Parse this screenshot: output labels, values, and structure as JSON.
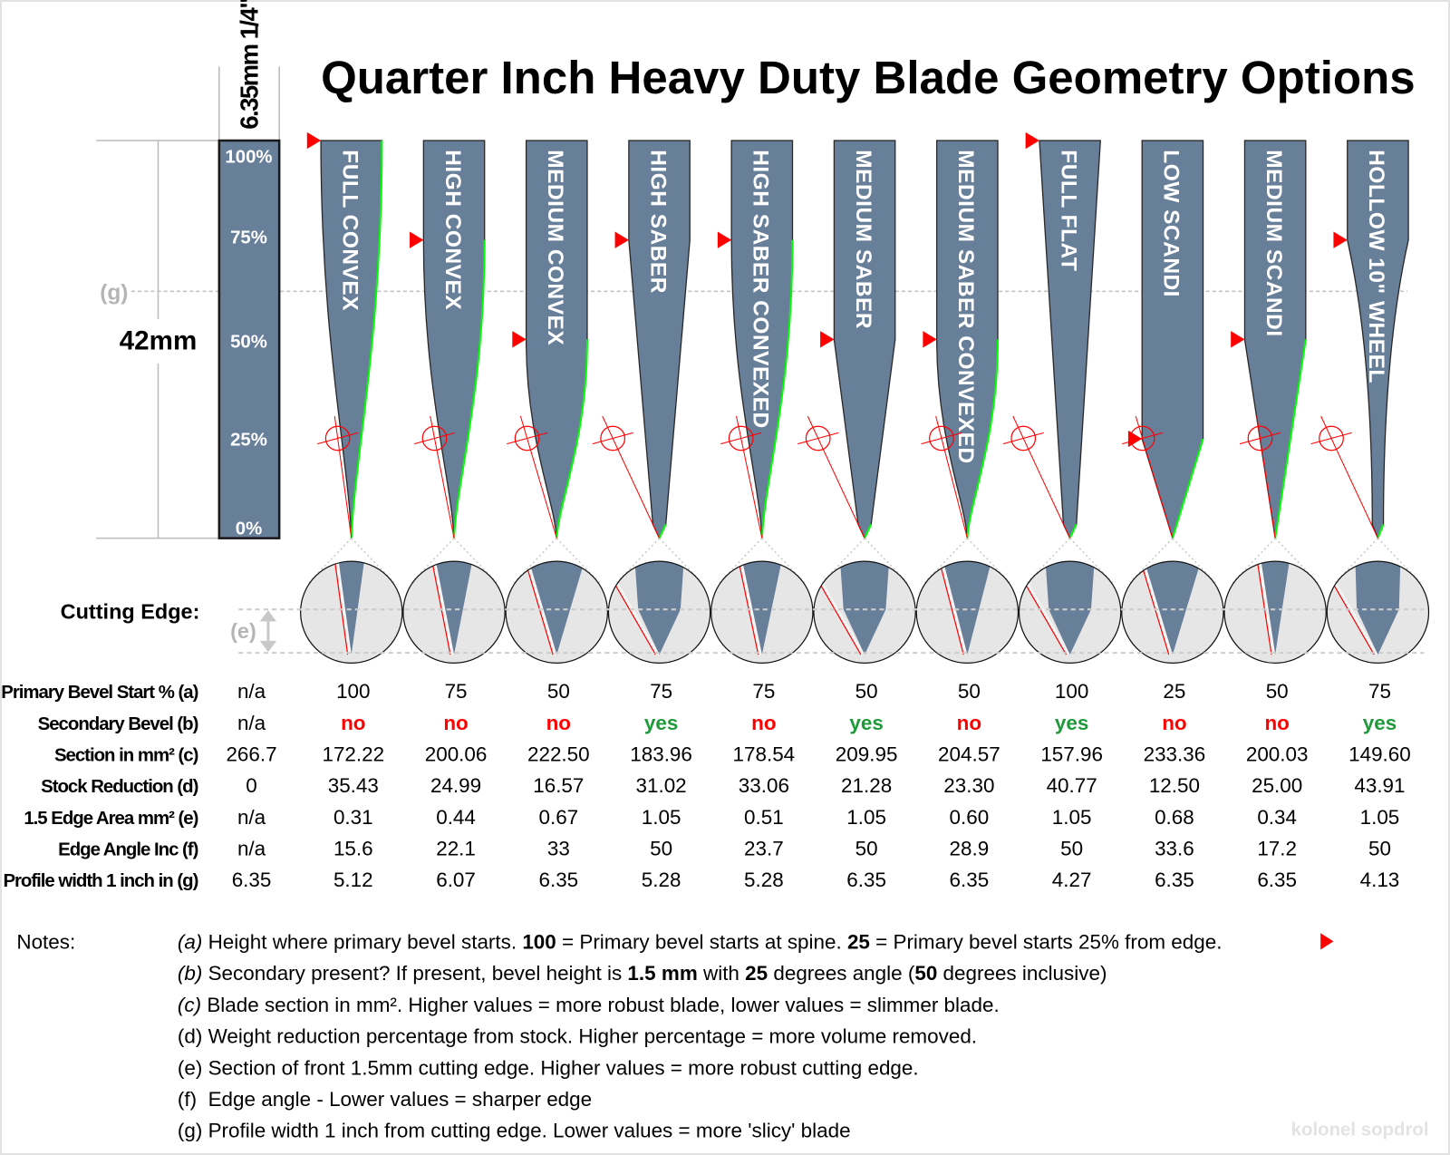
{
  "title": "Quarter Inch Heavy Duty Blade Geometry Options",
  "reference": {
    "stock_label": "6.35mm 1/4\"",
    "height_label": "42mm",
    "g_marker": "(g)",
    "e_marker": "(e)",
    "percent_ticks": [
      "100%",
      "75%",
      "50%",
      "25%",
      "0%"
    ]
  },
  "cutting_edge_label": "Cutting Edge:",
  "colors": {
    "blade": "#687f9a",
    "edge_green": "#00ff00",
    "marker_red": "#ff0000",
    "yes": "#1e9a3a",
    "no": "#ff0000",
    "magnifier_bg": "#e6e6e6"
  },
  "blades": [
    {
      "name": "FULL CONVEX",
      "grind": "convex"
    },
    {
      "name": "HIGH CONVEX",
      "grind": "convex"
    },
    {
      "name": "MEDIUM CONVEX",
      "grind": "convex"
    },
    {
      "name": "HIGH SABER",
      "grind": "flat"
    },
    {
      "name": "HIGH SABER CONVEXED",
      "grind": "convex"
    },
    {
      "name": "MEDIUM SABER",
      "grind": "flat"
    },
    {
      "name": "MEDIUM SABER CONVEXED",
      "grind": "convex"
    },
    {
      "name": "FULL FLAT",
      "grind": "flat"
    },
    {
      "name": "LOW SCANDI",
      "grind": "flat"
    },
    {
      "name": "MEDIUM SCANDI",
      "grind": "flat"
    },
    {
      "name": "HOLLOW 10\" WHEEL",
      "grind": "hollow"
    }
  ],
  "table": {
    "rows": [
      {
        "label": "Primary Bevel Start % (a)",
        "values": [
          "n/a",
          "100",
          "75",
          "50",
          "75",
          "75",
          "50",
          "50",
          "100",
          "25",
          "50",
          "75"
        ]
      },
      {
        "label": "Secondary Bevel (b)",
        "values": [
          "n/a",
          "no",
          "no",
          "no",
          "yes",
          "no",
          "yes",
          "no",
          "yes",
          "no",
          "no",
          "yes"
        ]
      },
      {
        "label": "Section in mm² (c)",
        "values": [
          "266.7",
          "172.22",
          "200.06",
          "222.50",
          "183.96",
          "178.54",
          "209.95",
          "204.57",
          "157.96",
          "233.36",
          "200.03",
          "149.60"
        ]
      },
      {
        "label": "Stock Reduction (d)",
        "values": [
          "0",
          "35.43",
          "24.99",
          "16.57",
          "31.02",
          "33.06",
          "21.28",
          "23.30",
          "40.77",
          "12.50",
          "25.00",
          "43.91"
        ]
      },
      {
        "label": "1.5 Edge Area mm² (e)",
        "values": [
          "n/a",
          "0.31",
          "0.44",
          "0.67",
          "1.05",
          "0.51",
          "1.05",
          "0.60",
          "1.05",
          "0.68",
          "0.34",
          "1.05"
        ]
      },
      {
        "label": "Edge Angle Inc (f)",
        "values": [
          "n/a",
          "15.6",
          "22.1",
          "33",
          "50",
          "23.7",
          "50",
          "28.9",
          "50",
          "33.6",
          "17.2",
          "50"
        ]
      },
      {
        "label": "Profile width 1 inch in (g)",
        "values": [
          "6.35",
          "5.12",
          "6.07",
          "6.35",
          "5.28",
          "5.28",
          "6.35",
          "6.35",
          "4.27",
          "6.35",
          "6.35",
          "4.13"
        ]
      }
    ]
  },
  "notes": {
    "label": "Notes:",
    "items": [
      [
        {
          "t": "(a)",
          "i": true
        },
        {
          "t": " Height where primary bevel starts. "
        },
        {
          "t": "100",
          "b": true
        },
        {
          "t": " = Primary bevel starts at spine. "
        },
        {
          "t": "25",
          "b": true
        },
        {
          "t": " = Primary bevel starts 25% from edge."
        }
      ],
      [
        {
          "t": "(b)",
          "i": true
        },
        {
          "t": " Secondary present? If present, bevel height is "
        },
        {
          "t": "1.5 mm",
          "b": true
        },
        {
          "t": " with "
        },
        {
          "t": "25",
          "b": true
        },
        {
          "t": " degrees angle ("
        },
        {
          "t": "50",
          "b": true
        },
        {
          "t": " degrees inclusive)"
        }
      ],
      [
        {
          "t": "(c)",
          "i": true
        },
        {
          "t": " Blade section in mm². Higher values = more robust blade, lower values = slimmer blade."
        }
      ],
      [
        {
          "t": "(d)"
        },
        {
          "t": " Weight reduction percentage from stock. Higher percentage = more volume removed."
        }
      ],
      [
        {
          "t": "(e)"
        },
        {
          "t": " Section of front 1.5mm cutting edge. Higher values = more robust cutting edge."
        }
      ],
      [
        {
          "t": "(f)"
        },
        {
          "t": "  Edge angle - Lower values = sharper edge"
        }
      ],
      [
        {
          "t": "(g)"
        },
        {
          "t": " Profile width 1 inch from cutting edge. Lower values = more 'slicy' blade"
        }
      ]
    ]
  },
  "watermark": "kolonel sopdrol"
}
